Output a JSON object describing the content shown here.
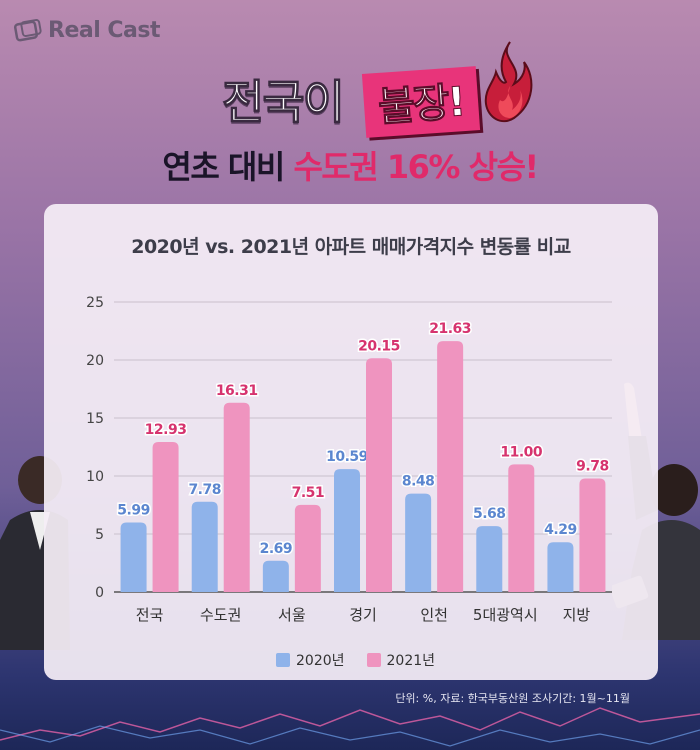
{
  "brand": {
    "logo_text": "Real Cast"
  },
  "headline": {
    "line1_white": "전국이",
    "line1_badge": "불장!",
    "line2_black": "연초 대비",
    "line2_pink": "수도권 16% 상승!"
  },
  "chart_data": {
    "type": "bar",
    "title": "2020년 vs. 2021년 아파트 매매가격지수 변동률 비교",
    "categories": [
      "전국",
      "수도권",
      "서울",
      "경기",
      "인천",
      "5대광역시",
      "지방"
    ],
    "series": [
      {
        "name": "2020년",
        "values": [
          5.99,
          7.78,
          2.69,
          10.59,
          8.48,
          5.68,
          4.29
        ],
        "color": "#8fb3ea",
        "label_color": "#5b86cf"
      },
      {
        "name": "2021년",
        "values": [
          12.93,
          16.31,
          7.51,
          20.15,
          21.63,
          11.0,
          9.78
        ],
        "color": "#ef94bf",
        "label_color": "#d6336e"
      }
    ],
    "value_labels": [
      [
        "5.99",
        "7.78",
        "2.69",
        "10.59",
        "8.48",
        "5.68",
        "4.29"
      ],
      [
        "12.93",
        "16.31",
        "7.51",
        "20.15",
        "21.63",
        "11.00",
        "9.78"
      ]
    ],
    "ylim": [
      0,
      25
    ],
    "yticks": [
      "0",
      "5",
      "10",
      "15",
      "20",
      "25"
    ],
    "grid": true,
    "legend": "bottom"
  },
  "footnote": "단위: %, 자료: 한국부동산원 조사기간: 1월~11월"
}
